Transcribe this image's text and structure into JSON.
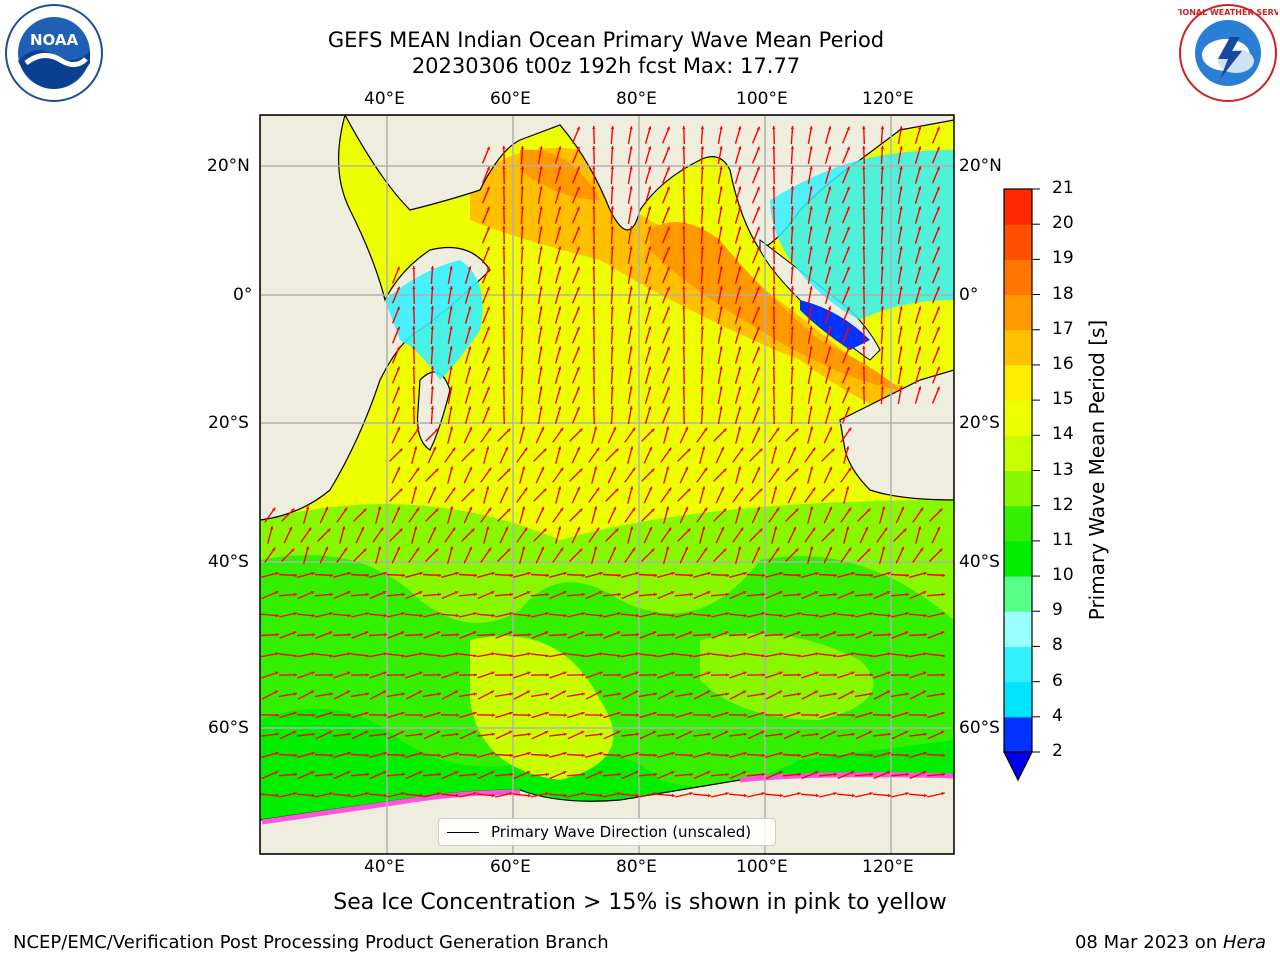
{
  "title": {
    "line1": "GEFS MEAN Indian Ocean Primary Wave Mean Period",
    "line2": "20230306 t00z 192h fcst   Max: 17.77"
  },
  "logos": {
    "left": {
      "icon": "noaa-logo",
      "text": "NOAA"
    },
    "right": {
      "icon": "nws-logo",
      "text": "NATIONAL WEATHER SERVICE"
    }
  },
  "map": {
    "lon_ticks_top": [
      "40°E",
      "60°E",
      "80°E",
      "100°E",
      "120°E"
    ],
    "lon_ticks_bottom": [
      "40°E",
      "60°E",
      "80°E",
      "100°E",
      "120°E"
    ],
    "lat_ticks_left": [
      "20°N",
      "0°",
      "20°S",
      "40°S",
      "60°S"
    ],
    "lat_ticks_right": [
      "20°N",
      "0°",
      "20°S",
      "40°S",
      "60°S"
    ],
    "legend_label": "Primary Wave Direction (unscaled)",
    "arrow_color": "#ff0000",
    "land_color": "#efedde"
  },
  "colorbar": {
    "label": "Primary Wave Mean Period [s]",
    "ticks": [
      "2",
      "4",
      "6",
      "8",
      "9",
      "10",
      "11",
      "12",
      "13",
      "14",
      "15",
      "16",
      "17",
      "18",
      "19",
      "20",
      "21"
    ],
    "colors": [
      "#0033ff",
      "#00e5ff",
      "#33f0ff",
      "#99ffff",
      "#55ff88",
      "#00ee00",
      "#33f000",
      "#88f800",
      "#c8ff00",
      "#eeff00",
      "#ffee00",
      "#ffc000",
      "#ff9900",
      "#ff7700",
      "#ff5000",
      "#ff2800",
      "#ff0000"
    ],
    "extend_color": "#0000ee"
  },
  "subtitle": "Sea Ice Concentration > 15% is shown in pink to yellow",
  "footer": {
    "left": "NCEP/EMC/Verification Post Processing Product Generation Branch",
    "right_date": "08 Mar 2023 on ",
    "right_host": "Hera"
  }
}
